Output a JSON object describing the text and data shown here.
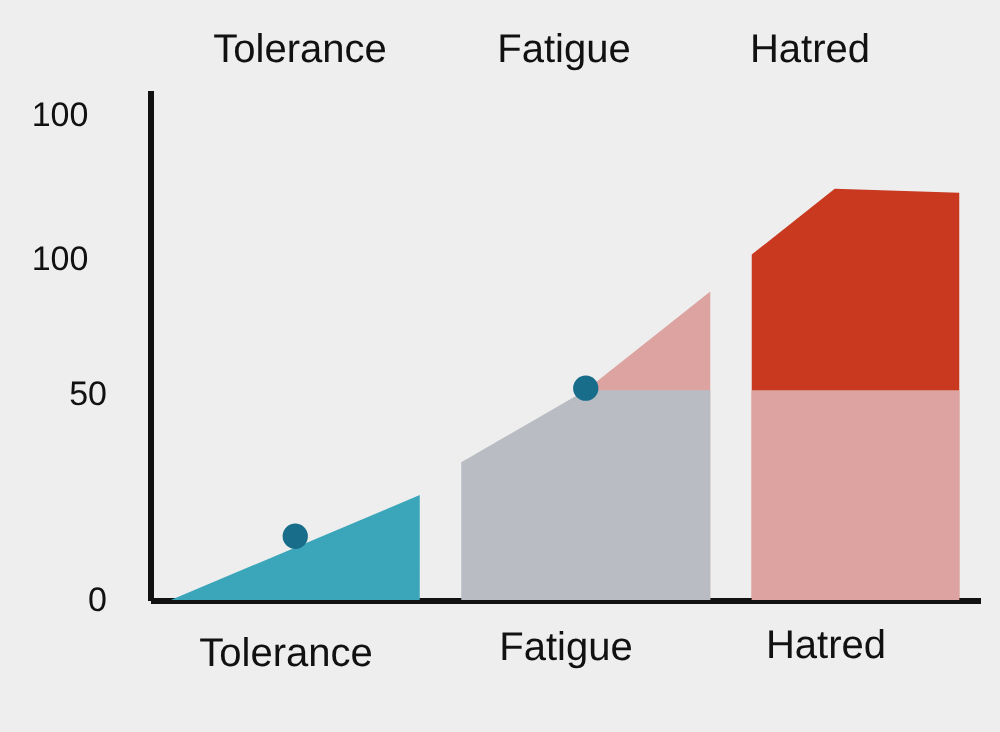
{
  "chart_data": {
    "type": "area",
    "categories": [
      null,
      null,
      null,
      null,
      null,
      null,
      null,
      null,
      null,
      null,
      null,
      null,
      null,
      null,
      null,
      null,
      null,
      null,
      null,
      null
    ],
    "series": [
      {
        "color": "#c8391f",
        "values": [
          null,
          null,
          null,
          null,
          null,
          null,
          null,
          null,
          null,
          null,
          null,
          null,
          null,
          null,
          84,
          null,
          100,
          null,
          null,
          99
        ]
      },
      {
        "color": "#dca3a0",
        "values": [
          null,
          null,
          null,
          null,
          null,
          null,
          null,
          null,
          null,
          null,
          51,
          null,
          null,
          75,
          null,
          null,
          null,
          null,
          null,
          null
        ]
      },
      {
        "color": "#dca3a0",
        "values": [
          null,
          null,
          null,
          null,
          null,
          null,
          null,
          null,
          null,
          null,
          null,
          null,
          null,
          null,
          51,
          null,
          null,
          null,
          null,
          51
        ]
      },
      {
        "color": "#b9bcc2",
        "values": [
          null,
          null,
          null,
          null,
          null,
          null,
          null,
          33.5,
          null,
          null,
          51,
          null,
          null,
          51,
          null,
          null,
          null,
          null,
          null,
          null
        ]
      },
      {
        "color": "#3ba6b9",
        "values": [
          0,
          null,
          null,
          null,
          null,
          null,
          25.5,
          null,
          null,
          null,
          null,
          null,
          null,
          null,
          null,
          null,
          null,
          null,
          null,
          null
        ]
      },
      {
        "type": "scatter",
        "marker": "circle",
        "color": "#176d8a",
        "values": [
          null,
          null,
          null,
          15.5,
          null,
          null,
          null,
          null,
          null,
          null,
          51.5,
          null,
          null,
          null,
          null,
          null,
          null,
          null,
          null,
          null
        ]
      }
    ],
    "ylim": [
      0,
      124
    ],
    "yticks": [
      0,
      50
    ],
    "annotations": [
      "Tolerance",
      "Fatigue",
      "Hatred",
      "Tolerance",
      "Fatigue",
      "Hatred",
      "100",
      "100"
    ],
    "tick_labels": "y",
    "grid": false
  }
}
